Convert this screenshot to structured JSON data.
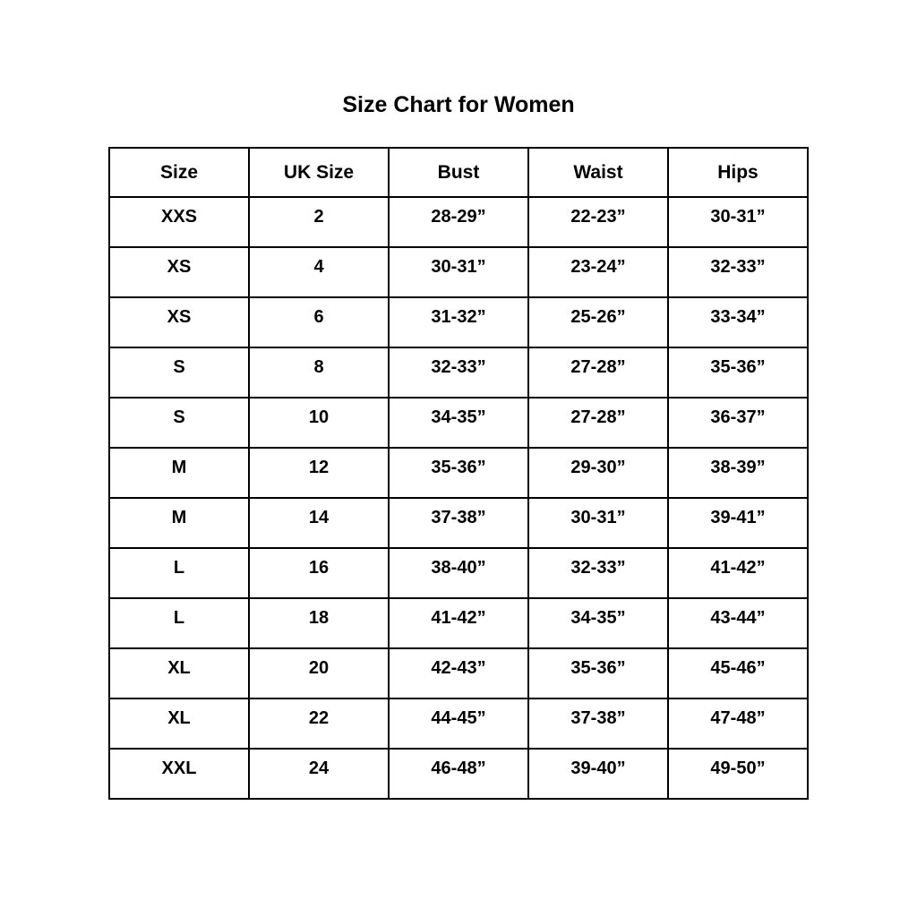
{
  "page_title": "Size Chart for Women",
  "chart_data": {
    "type": "table",
    "title": "Size Chart for Women",
    "columns": [
      "Size",
      "UK Size",
      "Bust",
      "Waist",
      "Hips"
    ],
    "column_keys": [
      "size",
      "uk-size",
      "bust",
      "waist",
      "hips"
    ],
    "rows": [
      [
        "XXS",
        "2",
        "28-29”",
        "22-23”",
        "30-31”"
      ],
      [
        "XS",
        "4",
        "30-31”",
        "23-24”",
        "32-33”"
      ],
      [
        "XS",
        "6",
        "31-32”",
        "25-26”",
        "33-34”"
      ],
      [
        "S",
        "8",
        "32-33”",
        "27-28”",
        "35-36”"
      ],
      [
        "S",
        "10",
        "34-35”",
        "27-28”",
        "36-37”"
      ],
      [
        "M",
        "12",
        "35-36”",
        "29-30”",
        "38-39”"
      ],
      [
        "M",
        "14",
        "37-38”",
        "30-31”",
        "39-41”"
      ],
      [
        "L",
        "16",
        "38-40”",
        "32-33”",
        "41-42”"
      ],
      [
        "L",
        "18",
        "41-42”",
        "34-35”",
        "43-44”"
      ],
      [
        "XL",
        "20",
        "42-43”",
        "35-36”",
        "45-46”"
      ],
      [
        "XL",
        "22",
        "44-45”",
        "37-38”",
        "47-48”"
      ],
      [
        "XXL",
        "24",
        "46-48”",
        "39-40”",
        "49-50”"
      ]
    ],
    "text_color": "#000000",
    "border_color": "#000000",
    "background_color": "#ffffff"
  }
}
